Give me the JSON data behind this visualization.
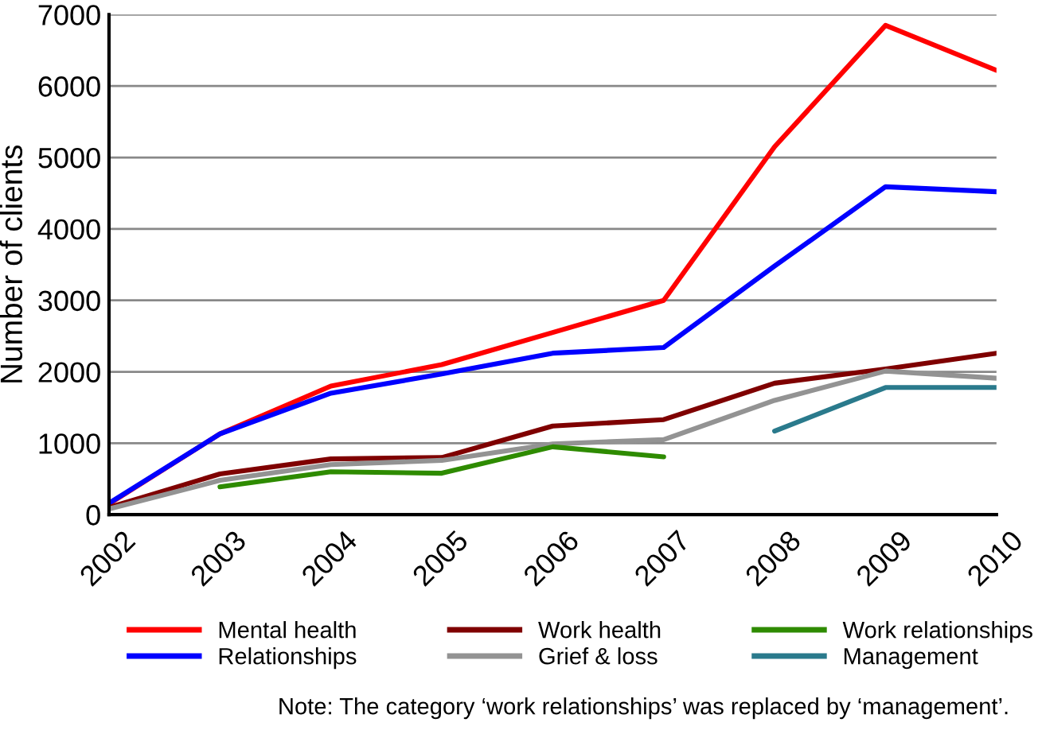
{
  "chart_data": {
    "type": "line",
    "ylabel": "Number of clients",
    "categories": [
      "2002",
      "2003",
      "2004",
      "2005",
      "2006",
      "2007",
      "2008",
      "2009",
      "2010"
    ],
    "series": [
      {
        "name": "Mental health",
        "color": "#ff0000",
        "values": [
          150,
          1130,
          1800,
          2100,
          2550,
          3000,
          5150,
          6850,
          6220
        ]
      },
      {
        "name": "Relationships",
        "color": "#0000ff",
        "values": [
          160,
          1130,
          1700,
          1970,
          2260,
          2340,
          3480,
          4590,
          4520
        ]
      },
      {
        "name": "Work health",
        "color": "#7f0000",
        "values": [
          100,
          570,
          780,
          800,
          1240,
          1330,
          1840,
          2040,
          2260
        ]
      },
      {
        "name": "Grief & loss",
        "color": "#939393",
        "values": [
          80,
          480,
          700,
          760,
          990,
          1050,
          1600,
          2010,
          1910
        ]
      },
      {
        "name": "Work relationships",
        "color": "#2e8b00",
        "values": [
          null,
          390,
          600,
          580,
          950,
          810,
          null,
          null,
          null
        ]
      },
      {
        "name": "Management",
        "color": "#2a7a8c",
        "values": [
          null,
          null,
          null,
          null,
          null,
          null,
          1170,
          1780,
          1780
        ]
      }
    ],
    "ylim": [
      0,
      7000
    ],
    "yticks": [
      0,
      1000,
      2000,
      3000,
      4000,
      5000,
      6000,
      7000
    ],
    "grid": "y",
    "legend": "bottom",
    "marker": "none",
    "line_style": "solid",
    "annotations": [
      "Note: The category ‘work relationships’ was replaced by ‘management’."
    ]
  }
}
